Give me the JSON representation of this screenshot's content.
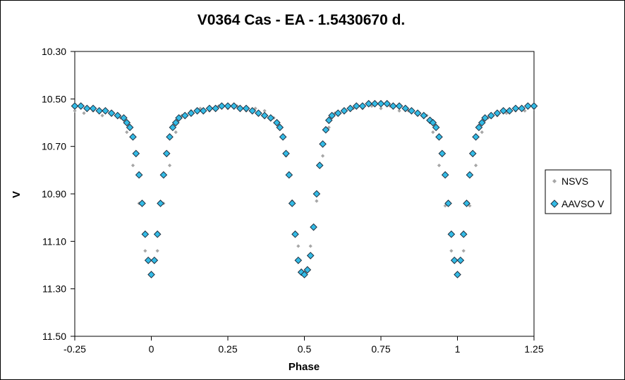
{
  "chart_data": {
    "type": "scatter",
    "title": "V0364 Cas - EA - 1.5430670 d.",
    "xlabel": "Phase",
    "ylabel": "V",
    "xlim": [
      -0.25,
      1.25
    ],
    "ylim": [
      10.3,
      11.5
    ],
    "y_inverted": true,
    "x_ticks": [
      -0.25,
      0,
      0.25,
      0.5,
      0.75,
      1,
      1.25
    ],
    "x_tick_labels": [
      "-0.25",
      "0",
      "0.25",
      "0.5",
      "0.75",
      "1",
      "1.25"
    ],
    "y_ticks": [
      10.3,
      10.5,
      10.7,
      10.9,
      11.1,
      11.3,
      11.5
    ],
    "y_tick_labels": [
      "10.30",
      "10.50",
      "10.70",
      "10.90",
      "11.10",
      "11.30",
      "11.50"
    ],
    "grid": false,
    "legend": "right",
    "series": [
      {
        "name": "NSVS",
        "marker": "small-diamond",
        "color": "#a6a6a6",
        "x": [
          -0.25,
          -0.22,
          -0.19,
          -0.16,
          -0.13,
          -0.1,
          -0.08,
          -0.06,
          -0.04,
          -0.02,
          0,
          0.02,
          0.04,
          0.06,
          0.08,
          0.1,
          0.13,
          0.16,
          0.19,
          0.22,
          0.25,
          0.28,
          0.31,
          0.34,
          0.37,
          0.4,
          0.42,
          0.44,
          0.46,
          0.48,
          0.5,
          0.52,
          0.54,
          0.56,
          0.58,
          0.6,
          0.63,
          0.66,
          0.69,
          0.72,
          0.75,
          0.78,
          0.81,
          0.84,
          0.87,
          0.9,
          0.92,
          0.94,
          0.96,
          0.98,
          1.0,
          1.02,
          1.04,
          1.06,
          1.08,
          1.1,
          1.13,
          1.16,
          1.19,
          1.22,
          1.25
        ],
        "y": [
          10.55,
          10.56,
          10.55,
          10.57,
          10.56,
          10.58,
          10.64,
          10.78,
          10.94,
          11.14,
          11.24,
          11.14,
          10.94,
          10.78,
          10.64,
          10.57,
          10.55,
          10.54,
          10.55,
          10.53,
          10.54,
          10.53,
          10.55,
          10.54,
          10.55,
          10.58,
          10.62,
          10.74,
          10.93,
          11.12,
          11.24,
          11.12,
          10.93,
          10.74,
          10.62,
          10.56,
          10.55,
          10.54,
          10.54,
          10.53,
          10.54,
          10.53,
          10.55,
          10.55,
          10.56,
          10.57,
          10.64,
          10.78,
          10.95,
          11.14,
          11.24,
          11.14,
          10.95,
          10.78,
          10.64,
          10.58,
          10.57,
          10.56,
          10.55,
          10.55,
          10.54
        ]
      },
      {
        "name": "AAVSO V",
        "marker": "diamond",
        "color": "#33bbe6",
        "edge": "#1f3040",
        "x": [
          -0.25,
          -0.23,
          -0.21,
          -0.19,
          -0.17,
          -0.15,
          -0.13,
          -0.11,
          -0.09,
          -0.08,
          -0.07,
          -0.06,
          -0.05,
          -0.04,
          -0.03,
          -0.02,
          -0.01,
          0,
          0.01,
          0.02,
          0.03,
          0.04,
          0.05,
          0.06,
          0.07,
          0.08,
          0.09,
          0.11,
          0.13,
          0.15,
          0.17,
          0.19,
          0.21,
          0.23,
          0.25,
          0.27,
          0.29,
          0.31,
          0.33,
          0.35,
          0.37,
          0.39,
          0.41,
          0.42,
          0.43,
          0.44,
          0.45,
          0.46,
          0.47,
          0.48,
          0.49,
          0.5,
          0.51,
          0.52,
          0.53,
          0.54,
          0.55,
          0.56,
          0.57,
          0.58,
          0.59,
          0.61,
          0.63,
          0.65,
          0.67,
          0.69,
          0.71,
          0.73,
          0.75,
          0.77,
          0.79,
          0.81,
          0.83,
          0.85,
          0.87,
          0.89,
          0.91,
          0.92,
          0.93,
          0.94,
          0.95,
          0.96,
          0.97,
          0.98,
          0.99,
          1.0,
          1.01,
          1.02,
          1.03,
          1.04,
          1.05,
          1.06,
          1.07,
          1.08,
          1.09,
          1.11,
          1.13,
          1.15,
          1.17,
          1.19,
          1.21,
          1.23,
          1.25
        ],
        "y": [
          10.53,
          10.53,
          10.54,
          10.54,
          10.55,
          10.55,
          10.56,
          10.57,
          10.58,
          10.6,
          10.62,
          10.66,
          10.73,
          10.82,
          10.94,
          11.07,
          11.18,
          11.24,
          11.18,
          11.07,
          10.94,
          10.82,
          10.73,
          10.66,
          10.62,
          10.6,
          10.58,
          10.57,
          10.56,
          10.55,
          10.55,
          10.54,
          10.54,
          10.53,
          10.53,
          10.53,
          10.54,
          10.54,
          10.55,
          10.56,
          10.57,
          10.58,
          10.6,
          10.62,
          10.66,
          10.73,
          10.82,
          10.94,
          11.07,
          11.18,
          11.23,
          11.24,
          11.22,
          11.16,
          11.04,
          10.9,
          10.78,
          10.69,
          10.63,
          10.59,
          10.57,
          10.56,
          10.55,
          10.54,
          10.53,
          10.53,
          10.52,
          10.52,
          10.52,
          10.52,
          10.53,
          10.53,
          10.54,
          10.55,
          10.56,
          10.57,
          10.59,
          10.6,
          10.62,
          10.66,
          10.73,
          10.82,
          10.94,
          11.07,
          11.18,
          11.24,
          11.18,
          11.07,
          10.94,
          10.82,
          10.73,
          10.66,
          10.62,
          10.6,
          10.58,
          10.57,
          10.56,
          10.55,
          10.55,
          10.54,
          10.54,
          10.53,
          10.53
        ]
      }
    ]
  }
}
